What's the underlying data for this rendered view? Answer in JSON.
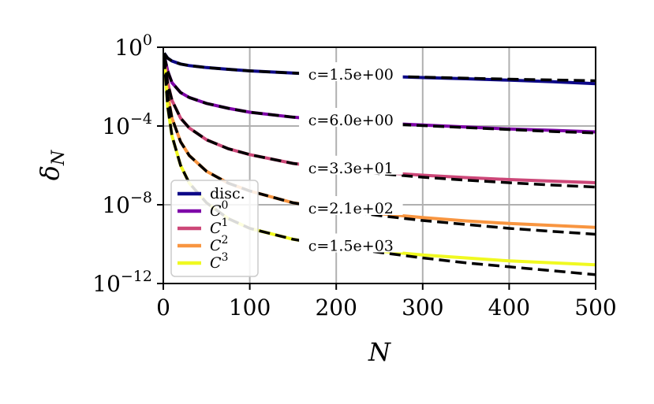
{
  "chart_data": {
    "type": "line",
    "xlabel": "N",
    "ylabel": "δ",
    "ylabel_sub": "N",
    "xlim": [
      0,
      500
    ],
    "ylim_log10": [
      -12,
      0
    ],
    "yscale": "log",
    "grid": true,
    "xticks": [
      0,
      100,
      200,
      300,
      400,
      500
    ],
    "xtick_labels": [
      "0",
      "100",
      "200",
      "300",
      "400",
      "500"
    ],
    "yticks_log10": [
      0,
      -4,
      -8,
      -12
    ],
    "ytick_labels": [
      {
        "base": "10",
        "exp": "0"
      },
      {
        "base": "10",
        "exp": "−4"
      },
      {
        "base": "10",
        "exp": "−8"
      },
      {
        "base": "10",
        "exp": "−12"
      }
    ],
    "legend_position": "lower-left",
    "legend": [
      {
        "label": "disc.",
        "sup": "",
        "color": "#0d0887"
      },
      {
        "label": "C",
        "sup": "0",
        "color": "#7e03a8"
      },
      {
        "label": "C",
        "sup": "1",
        "color": "#cc4778"
      },
      {
        "label": "C",
        "sup": "2",
        "color": "#f89540"
      },
      {
        "label": "C",
        "sup": "3",
        "color": "#f0f921"
      }
    ],
    "series": [
      {
        "name": "disc.",
        "color": "#0d0887",
        "annotation": "c=1.5e+00",
        "x": [
          1,
          5,
          10,
          20,
          30,
          50,
          75,
          100,
          150,
          200,
          250,
          300,
          350,
          400,
          450,
          500
        ],
        "log10_y": [
          -0.3,
          -0.55,
          -0.7,
          -0.85,
          -0.93,
          -1.03,
          -1.12,
          -1.2,
          -1.31,
          -1.4,
          -1.47,
          -1.54,
          -1.6,
          -1.67,
          -1.75,
          -1.85
        ],
        "fit_log10_y": [
          -0.3,
          -0.55,
          -0.7,
          -0.85,
          -0.93,
          -1.03,
          -1.12,
          -1.2,
          -1.31,
          -1.4,
          -1.46,
          -1.52,
          -1.57,
          -1.62,
          -1.66,
          -1.7
        ]
      },
      {
        "name": "C^0",
        "color": "#7e03a8",
        "annotation": "c=6.0e+00",
        "x": [
          1,
          5,
          10,
          20,
          30,
          50,
          75,
          100,
          150,
          200,
          250,
          300,
          350,
          400,
          450,
          500
        ],
        "log10_y": [
          -0.4,
          -1.2,
          -1.8,
          -2.3,
          -2.55,
          -2.85,
          -3.1,
          -3.3,
          -3.55,
          -3.72,
          -3.85,
          -3.95,
          -4.05,
          -4.15,
          -4.22,
          -4.3
        ],
        "fit_log10_y": [
          -0.4,
          -1.2,
          -1.8,
          -2.3,
          -2.55,
          -2.85,
          -3.1,
          -3.3,
          -3.55,
          -3.72,
          -3.86,
          -3.98,
          -4.08,
          -4.18,
          -4.28,
          -4.35
        ]
      },
      {
        "name": "C^1",
        "color": "#cc4778",
        "annotation": "c=3.3e+01",
        "x": [
          1,
          5,
          10,
          20,
          30,
          50,
          75,
          100,
          150,
          200,
          250,
          300,
          350,
          400,
          450,
          500
        ],
        "log10_y": [
          -0.45,
          -1.8,
          -2.7,
          -3.6,
          -4.1,
          -4.7,
          -5.15,
          -5.45,
          -5.9,
          -6.15,
          -6.35,
          -6.5,
          -6.62,
          -6.72,
          -6.8,
          -6.88
        ],
        "fit_log10_y": [
          -0.45,
          -1.8,
          -2.7,
          -3.6,
          -4.1,
          -4.7,
          -5.15,
          -5.45,
          -5.9,
          -6.2,
          -6.42,
          -6.6,
          -6.75,
          -6.88,
          -7.0,
          -7.1
        ]
      },
      {
        "name": "C^2",
        "color": "#f89540",
        "annotation": "c=2.1e+02",
        "x": [
          1,
          5,
          10,
          20,
          30,
          50,
          75,
          100,
          150,
          200,
          250,
          300,
          350,
          400,
          450,
          500
        ],
        "log10_y": [
          -0.5,
          -2.4,
          -3.6,
          -4.8,
          -5.5,
          -6.3,
          -6.9,
          -7.3,
          -7.9,
          -8.2,
          -8.45,
          -8.65,
          -8.82,
          -8.95,
          -9.05,
          -9.15
        ],
        "fit_log10_y": [
          -0.5,
          -2.4,
          -3.6,
          -4.8,
          -5.5,
          -6.3,
          -6.9,
          -7.3,
          -7.9,
          -8.25,
          -8.55,
          -8.8,
          -9.0,
          -9.2,
          -9.35,
          -9.5
        ]
      },
      {
        "name": "C^3",
        "color": "#f0f921",
        "annotation": "c=1.5e+03",
        "x": [
          1,
          5,
          10,
          20,
          30,
          50,
          75,
          100,
          150,
          200,
          250,
          300,
          350,
          400,
          450,
          500
        ],
        "log10_y": [
          -0.55,
          -3.0,
          -4.5,
          -6.0,
          -6.9,
          -7.9,
          -8.7,
          -9.2,
          -9.75,
          -10.1,
          -10.35,
          -10.55,
          -10.7,
          -10.85,
          -10.95,
          -11.05
        ],
        "fit_log10_y": [
          -0.55,
          -3.0,
          -4.5,
          -6.0,
          -6.9,
          -7.9,
          -8.7,
          -9.2,
          -9.75,
          -10.12,
          -10.42,
          -10.7,
          -10.95,
          -11.15,
          -11.35,
          -11.55
        ]
      }
    ]
  }
}
